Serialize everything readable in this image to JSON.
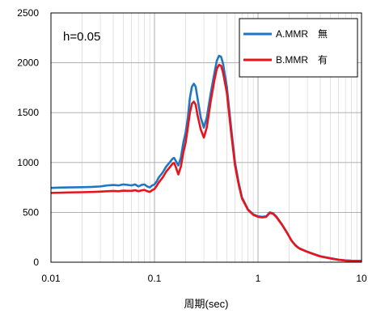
{
  "chart_data": {
    "type": "line",
    "x_scale": "log",
    "xlim": [
      0.01,
      10
    ],
    "ylim": [
      0,
      2500
    ],
    "xlabel": "周期(sec)",
    "ylabel": "",
    "x_ticks": [
      "0.01",
      "0.1",
      "1",
      "10"
    ],
    "y_ticks": [
      "0",
      "500",
      "1000",
      "1500",
      "2000",
      "2500"
    ],
    "grid": true,
    "annotation": "h=0.05",
    "legend_position": "top-right",
    "series": [
      {
        "name": "A.MMR　無",
        "color": "#1f77c4",
        "points": [
          [
            0.01,
            745
          ],
          [
            0.012,
            748
          ],
          [
            0.015,
            750
          ],
          [
            0.02,
            752
          ],
          [
            0.025,
            755
          ],
          [
            0.03,
            760
          ],
          [
            0.035,
            770
          ],
          [
            0.04,
            775
          ],
          [
            0.045,
            770
          ],
          [
            0.05,
            780
          ],
          [
            0.055,
            775
          ],
          [
            0.06,
            770
          ],
          [
            0.065,
            780
          ],
          [
            0.07,
            760
          ],
          [
            0.075,
            775
          ],
          [
            0.08,
            780
          ],
          [
            0.085,
            760
          ],
          [
            0.09,
            750
          ],
          [
            0.095,
            770
          ],
          [
            0.1,
            780
          ],
          [
            0.105,
            810
          ],
          [
            0.11,
            850
          ],
          [
            0.12,
            900
          ],
          [
            0.13,
            960
          ],
          [
            0.14,
            1000
          ],
          [
            0.15,
            1040
          ],
          [
            0.155,
            1045
          ],
          [
            0.16,
            1020
          ],
          [
            0.17,
            970
          ],
          [
            0.18,
            1050
          ],
          [
            0.19,
            1200
          ],
          [
            0.2,
            1300
          ],
          [
            0.21,
            1450
          ],
          [
            0.22,
            1650
          ],
          [
            0.23,
            1760
          ],
          [
            0.24,
            1790
          ],
          [
            0.25,
            1760
          ],
          [
            0.26,
            1650
          ],
          [
            0.28,
            1450
          ],
          [
            0.3,
            1350
          ],
          [
            0.32,
            1450
          ],
          [
            0.35,
            1700
          ],
          [
            0.38,
            1900
          ],
          [
            0.4,
            2020
          ],
          [
            0.42,
            2070
          ],
          [
            0.44,
            2060
          ],
          [
            0.46,
            1990
          ],
          [
            0.5,
            1760
          ],
          [
            0.55,
            1350
          ],
          [
            0.6,
            1000
          ],
          [
            0.65,
            800
          ],
          [
            0.7,
            650
          ],
          [
            0.8,
            530
          ],
          [
            0.9,
            480
          ],
          [
            1.0,
            460
          ],
          [
            1.1,
            455
          ],
          [
            1.2,
            460
          ],
          [
            1.3,
            500
          ],
          [
            1.4,
            490
          ],
          [
            1.5,
            460
          ],
          [
            1.7,
            380
          ],
          [
            1.9,
            300
          ],
          [
            2.1,
            220
          ],
          [
            2.3,
            170
          ],
          [
            2.5,
            140
          ],
          [
            3.0,
            105
          ],
          [
            3.5,
            80
          ],
          [
            4.0,
            60
          ],
          [
            5.0,
            40
          ],
          [
            6.0,
            25
          ],
          [
            7.0,
            18
          ],
          [
            8.0,
            15
          ],
          [
            10.0,
            13
          ]
        ]
      },
      {
        "name": "B.MMR　有",
        "color": "#e8141b",
        "points": [
          [
            0.01,
            695
          ],
          [
            0.012,
            697
          ],
          [
            0.015,
            700
          ],
          [
            0.02,
            702
          ],
          [
            0.025,
            705
          ],
          [
            0.03,
            708
          ],
          [
            0.035,
            712
          ],
          [
            0.04,
            715
          ],
          [
            0.045,
            712
          ],
          [
            0.05,
            718
          ],
          [
            0.055,
            716
          ],
          [
            0.06,
            716
          ],
          [
            0.065,
            722
          ],
          [
            0.07,
            712
          ],
          [
            0.075,
            720
          ],
          [
            0.08,
            725
          ],
          [
            0.085,
            712
          ],
          [
            0.09,
            705
          ],
          [
            0.095,
            722
          ],
          [
            0.1,
            735
          ],
          [
            0.105,
            765
          ],
          [
            0.11,
            800
          ],
          [
            0.12,
            850
          ],
          [
            0.13,
            910
          ],
          [
            0.14,
            950
          ],
          [
            0.15,
            990
          ],
          [
            0.155,
            995
          ],
          [
            0.16,
            960
          ],
          [
            0.17,
            880
          ],
          [
            0.18,
            960
          ],
          [
            0.19,
            1100
          ],
          [
            0.2,
            1200
          ],
          [
            0.21,
            1350
          ],
          [
            0.22,
            1500
          ],
          [
            0.23,
            1590
          ],
          [
            0.24,
            1610
          ],
          [
            0.25,
            1580
          ],
          [
            0.26,
            1480
          ],
          [
            0.28,
            1330
          ],
          [
            0.3,
            1250
          ],
          [
            0.32,
            1350
          ],
          [
            0.35,
            1620
          ],
          [
            0.38,
            1830
          ],
          [
            0.4,
            1940
          ],
          [
            0.42,
            1980
          ],
          [
            0.44,
            1970
          ],
          [
            0.46,
            1900
          ],
          [
            0.5,
            1700
          ],
          [
            0.55,
            1300
          ],
          [
            0.6,
            970
          ],
          [
            0.65,
            780
          ],
          [
            0.7,
            640
          ],
          [
            0.8,
            525
          ],
          [
            0.9,
            475
          ],
          [
            1.0,
            455
          ],
          [
            1.1,
            450
          ],
          [
            1.2,
            455
          ],
          [
            1.3,
            495
          ],
          [
            1.4,
            485
          ],
          [
            1.5,
            455
          ],
          [
            1.7,
            378
          ],
          [
            1.9,
            298
          ],
          [
            2.1,
            218
          ],
          [
            2.3,
            168
          ],
          [
            2.5,
            138
          ],
          [
            3.0,
            103
          ],
          [
            3.5,
            78
          ],
          [
            4.0,
            58
          ],
          [
            5.0,
            38
          ],
          [
            6.0,
            24
          ],
          [
            7.0,
            17
          ],
          [
            8.0,
            14
          ],
          [
            10.0,
            12
          ]
        ]
      }
    ]
  }
}
